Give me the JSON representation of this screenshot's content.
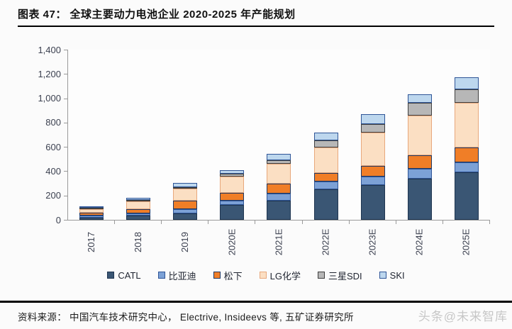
{
  "header": {
    "title": "图表 47：  全球主要动力电池企业 2020-2025 年产能规划"
  },
  "chart_data": {
    "type": "bar",
    "stacked": true,
    "title": "全球主要动力电池企业 2020-2025 年产能规划",
    "categories": [
      "2017",
      "2018",
      "2019",
      "2020E",
      "2021E",
      "2022E",
      "2023E",
      "2024E",
      "2025E"
    ],
    "series": [
      {
        "name": "CATL",
        "fill": "#3A5674",
        "border": "#1F3550",
        "values": [
          20,
          35,
          55,
          120,
          160,
          250,
          285,
          340,
          390
        ]
      },
      {
        "name": "比亚迪",
        "fill": "#7CA1D6",
        "border": "#2F5597",
        "values": [
          15,
          15,
          30,
          40,
          55,
          65,
          70,
          80,
          85
        ]
      },
      {
        "name": "松下",
        "fill": "#F07E27",
        "border": "#1F3864",
        "values": [
          25,
          40,
          75,
          60,
          80,
          70,
          90,
          110,
          120
        ]
      },
      {
        "name": "LG化学",
        "fill": "#FBDFC3",
        "border": "#E8A87C",
        "values": [
          25,
          60,
          95,
          135,
          165,
          210,
          270,
          325,
          365
        ]
      },
      {
        "name": "三星SDI",
        "fill": "#B7B7B7",
        "border": "#3F3F3F",
        "values": [
          10,
          15,
          15,
          25,
          30,
          60,
          70,
          105,
          115
        ]
      },
      {
        "name": "SKI",
        "fill": "#BDD7EE",
        "border": "#2F5597",
        "values": [
          5,
          15,
          35,
          30,
          55,
          65,
          85,
          75,
          100
        ]
      }
    ],
    "ylim": [
      0,
      1400
    ],
    "ytick_labels": [
      "1,400",
      "1,200",
      "1,000",
      "800",
      "600",
      "400",
      "200",
      "0"
    ],
    "grid": false,
    "legend_position": "bottom",
    "axis_color": "#9a9a9a"
  },
  "footer": {
    "source": "资料来源： 中国汽车技术研究中心， Electrive, Insideevs 等, 五矿证券研究所",
    "watermark": "头条@未来智库"
  }
}
